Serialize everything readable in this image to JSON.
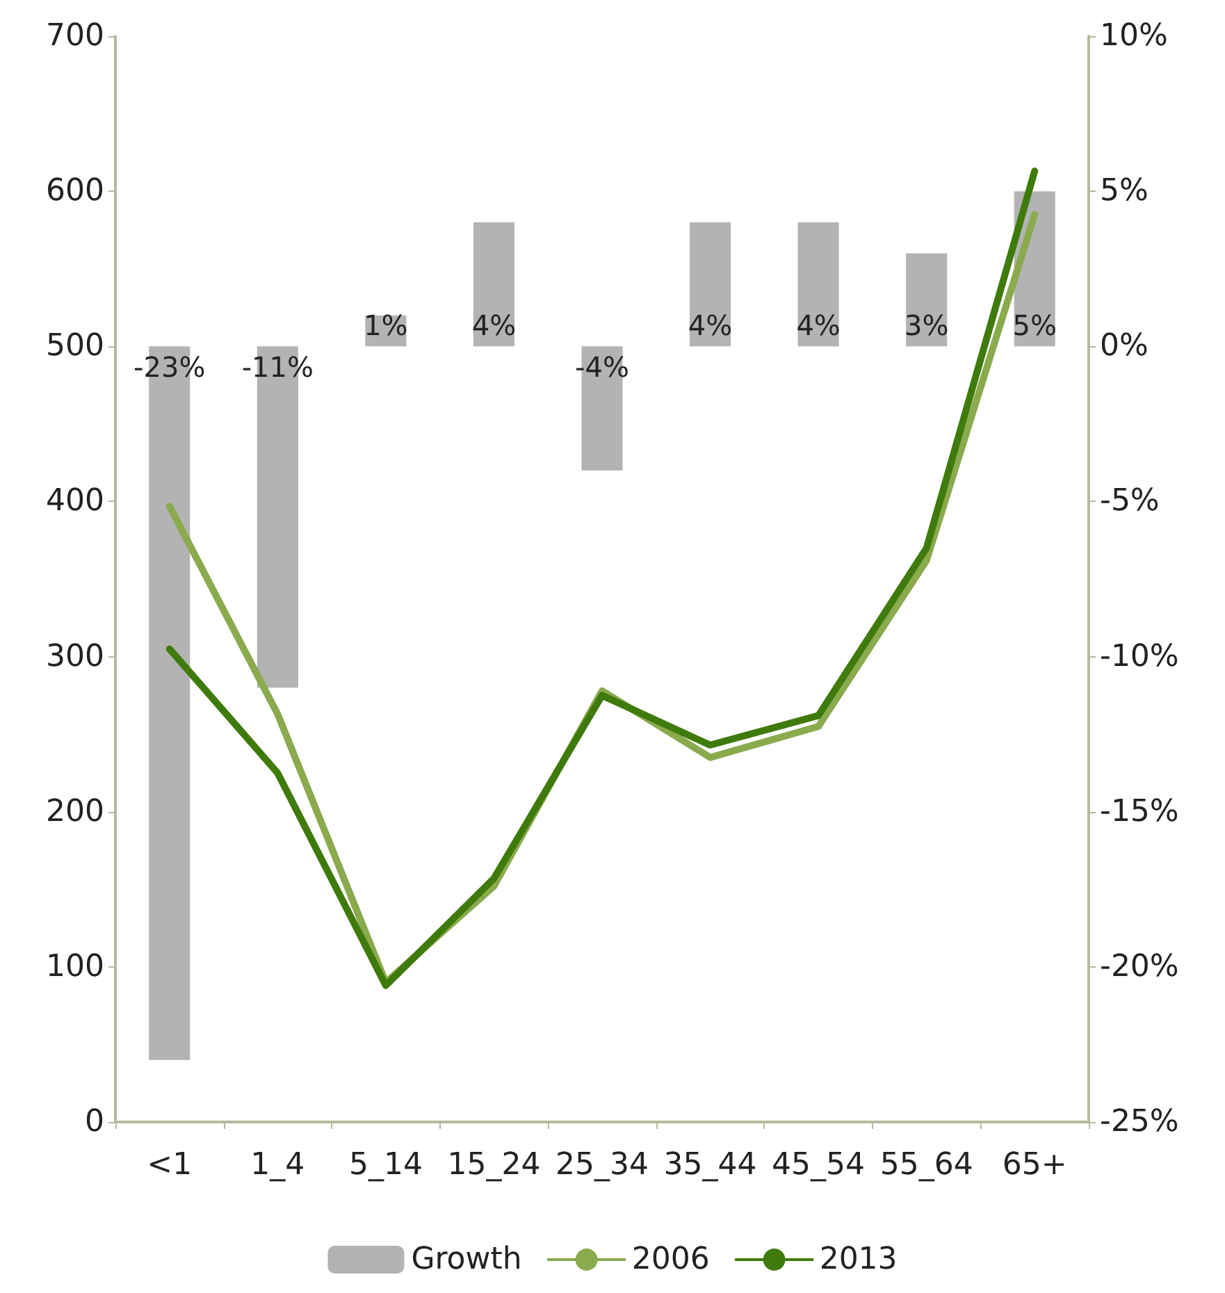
{
  "chart_data": {
    "type": "line",
    "categories": [
      "<1",
      "1_4",
      "5_14",
      "15_24",
      "25_34",
      "35_44",
      "45_54",
      "55_64",
      "65+"
    ],
    "series": [
      {
        "name": "Growth",
        "type": "bar",
        "axis": "y2",
        "color": "#b3b3b3",
        "values": [
          -23,
          -11,
          1,
          4,
          -4,
          4,
          4,
          3,
          5
        ],
        "value_labels": [
          "-23%",
          "-11%",
          "1%",
          "4%",
          "-4%",
          "4%",
          "4%",
          "3%",
          "5%"
        ]
      },
      {
        "name": "2006",
        "color": "#8aaa4e",
        "values": [
          397,
          263,
          90,
          152,
          278,
          235,
          255,
          362,
          585
        ]
      },
      {
        "name": "2013",
        "color": "#3f7a0c",
        "values": [
          305,
          225,
          88,
          157,
          275,
          243,
          262,
          370,
          613
        ]
      }
    ],
    "ylim": [
      0,
      700
    ],
    "yticks": [
      0,
      100,
      200,
      300,
      400,
      500,
      600,
      700
    ],
    "y2lim": [
      -25,
      10
    ],
    "y2ticks": [
      {
        "value": -25,
        "label": "-25%"
      },
      {
        "value": -20,
        "label": "-20%"
      },
      {
        "value": -15,
        "label": "-15%"
      },
      {
        "value": -10,
        "label": "-10%"
      },
      {
        "value": -5,
        "label": "-5%"
      },
      {
        "value": 0,
        "label": "0%"
      },
      {
        "value": 5,
        "label": "5%"
      },
      {
        "value": 10,
        "label": "10%"
      }
    ],
    "grid": false,
    "legend": "bottom",
    "marker": "none",
    "line_style": "solid"
  }
}
